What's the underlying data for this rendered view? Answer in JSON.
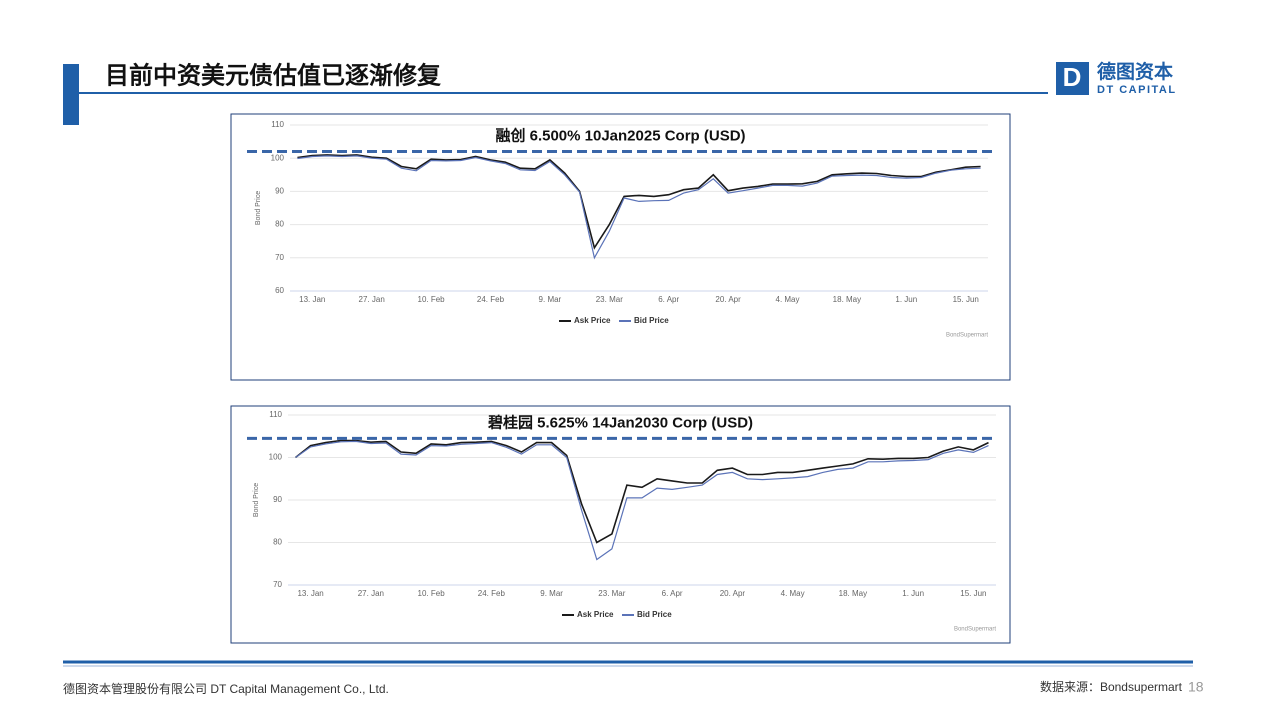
{
  "slide": {
    "title": "目前中资美元债估值已逐渐修复",
    "logo": {
      "mark": "D",
      "cn": "德图资本",
      "en": "DT CAPITAL"
    },
    "footer": {
      "company": "德图资本管理股份有限公司  DT Capital Management  Co., Ltd.",
      "source": "数据来源：Bondsupermart",
      "page": 18
    }
  },
  "chart_data": [
    {
      "type": "line",
      "title": "融创 6.500% 10Jan2025 Corp (USD)",
      "y_label": "Bond Price",
      "credit": "BondSupermart",
      "categories": [
        null,
        "13. Jan",
        null,
        null,
        null,
        "27. Jan",
        null,
        null,
        null,
        "10. Feb",
        null,
        null,
        null,
        "24. Feb",
        null,
        null,
        null,
        "9. Mar",
        null,
        null,
        null,
        "23. Mar",
        null,
        null,
        null,
        "6. Apr",
        null,
        null,
        null,
        "20. Apr",
        null,
        null,
        null,
        "4. May",
        null,
        null,
        null,
        "18. May",
        null,
        null,
        null,
        "1. Jun",
        null,
        null,
        null,
        "15. Jun",
        null
      ],
      "series": [
        {
          "name": "Ask Price",
          "color": "#1a1a1a",
          "values": [
            100.2,
            100.8,
            101,
            100.8,
            101,
            100.3,
            100,
            97.5,
            96.8,
            99.7,
            99.5,
            99.6,
            100.5,
            99.5,
            98.8,
            97,
            96.8,
            99.5,
            95.5,
            90,
            73,
            80,
            88.5,
            88.8,
            88.5,
            89,
            90.5,
            91,
            95,
            90.2,
            91,
            91.5,
            92.2,
            92.2,
            92.3,
            93,
            95,
            95.3,
            95.5,
            95.4,
            94.8,
            94.5,
            94.5,
            95.8,
            96.5,
            97.3,
            97.5
          ]
        },
        {
          "name": "Bid Price",
          "color": "#5b73b8",
          "values": [
            99.9,
            100.5,
            100.7,
            100.5,
            100.7,
            100,
            99.7,
            97,
            96.2,
            99.3,
            99.2,
            99.3,
            100.2,
            99.2,
            98.4,
            96.5,
            96.3,
            99,
            95,
            89.8,
            70,
            78,
            88,
            87,
            87.2,
            87.3,
            89.5,
            90.5,
            93.8,
            89.5,
            90.2,
            91,
            91.8,
            91.8,
            91.6,
            92.5,
            94.6,
            94.8,
            94.9,
            94.8,
            94.2,
            94,
            94.2,
            95.5,
            96.4,
            96.8,
            97
          ]
        }
      ],
      "ylim": [
        60,
        110
      ],
      "yticks": [
        60,
        70,
        80,
        90,
        100,
        110
      ],
      "grid": true,
      "legend": "bottom",
      "reference_line": 102,
      "reference_color": "#3a66a8"
    },
    {
      "type": "line",
      "title": "碧桂园 5.625% 14Jan2030 Corp (USD)",
      "y_label": "Bond Price",
      "credit": "BondSupermart",
      "categories": [
        null,
        "13. Jan",
        null,
        null,
        null,
        "27. Jan",
        null,
        null,
        null,
        "10. Feb",
        null,
        null,
        null,
        "24. Feb",
        null,
        null,
        null,
        "9. Mar",
        null,
        null,
        null,
        "23. Mar",
        null,
        null,
        null,
        "6. Apr",
        null,
        null,
        null,
        "20. Apr",
        null,
        null,
        null,
        "4. May",
        null,
        null,
        null,
        "18. May",
        null,
        null,
        null,
        "1. Jun",
        null,
        null,
        null,
        "15. Jun",
        null
      ],
      "series": [
        {
          "name": "Ask Price",
          "color": "#1a1a1a",
          "values": [
            100,
            102.8,
            103.5,
            104,
            104,
            103.6,
            103.8,
            101.3,
            101,
            103.2,
            103,
            103.5,
            103.6,
            103.8,
            102.8,
            101.3,
            103.5,
            103.5,
            100.5,
            89,
            80,
            82,
            93.5,
            93,
            95,
            94.5,
            94,
            94,
            97,
            97.5,
            96,
            96,
            96.5,
            96.5,
            97,
            97.5,
            98,
            98.5,
            99.7,
            99.6,
            99.8,
            99.8,
            100,
            101.5,
            102.5,
            101.8,
            103.5
          ]
        },
        {
          "name": "Bid Price",
          "color": "#5b73b8",
          "values": [
            100,
            102.5,
            103.2,
            103.7,
            103.8,
            103.3,
            103.4,
            100.8,
            100.6,
            102.8,
            102.7,
            103.1,
            103.3,
            103.5,
            102.4,
            100.8,
            103,
            103,
            100,
            87.5,
            76,
            78.5,
            90.5,
            90.5,
            92.8,
            92.5,
            93,
            93.5,
            96,
            96.5,
            95,
            94.8,
            95,
            95.2,
            95.5,
            96.5,
            97.2,
            97.5,
            99,
            99,
            99.2,
            99.3,
            99.5,
            101,
            101.8,
            101.2,
            102.8
          ]
        }
      ],
      "ylim": [
        70,
        110
      ],
      "yticks": [
        70,
        80,
        90,
        100,
        110
      ],
      "grid": true,
      "legend": "bottom",
      "reference_line": 104.5,
      "reference_color": "#3a66a8"
    }
  ]
}
